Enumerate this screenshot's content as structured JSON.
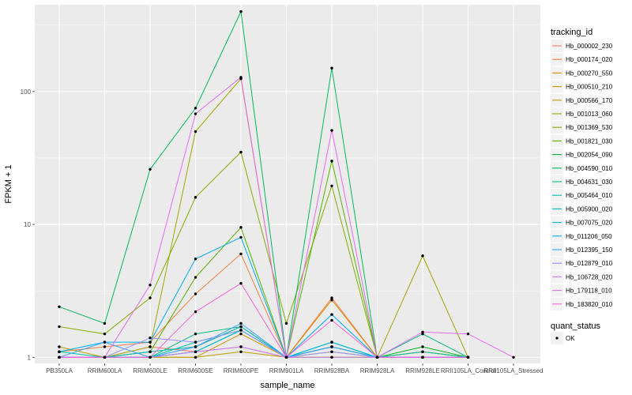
{
  "chart_data": {
    "type": "line",
    "title": "",
    "xlabel": "sample_name",
    "ylabel": "FPKM + 1",
    "y_scale": "log10",
    "ylim": [
      0.9,
      450
    ],
    "y_ticks": [
      1,
      10,
      100
    ],
    "y_tick_labels": [
      "1",
      "10",
      "100"
    ],
    "grid": true,
    "panel_background": "#EBEBEB",
    "legend_position": "right",
    "categories": [
      "PB350LA",
      "RRIM600LA",
      "RRIM600LE",
      "RRIM600SE",
      "RRIM600PE",
      "RRIM901LA",
      "RRIM928BA",
      "RRIM928LA",
      "RRIM928LE",
      "RRII105LA_Control",
      "RRII105LA_Stressed"
    ],
    "series": [
      {
        "name": "Hb_000002_230",
        "color": "#F8766D",
        "values": [
          1.0,
          1.0,
          1.2,
          1.1,
          1.2,
          1.0,
          1.2,
          1.0,
          1.0,
          1.0,
          null
        ]
      },
      {
        "name": "Hb_000174_020",
        "color": "#EE8044",
        "values": [
          1.1,
          1.2,
          1.3,
          3.0,
          6.0,
          1.0,
          2.8,
          1.0,
          1.1,
          1.0,
          null
        ]
      },
      {
        "name": "Hb_000270_550",
        "color": "#E18A00",
        "values": [
          1.0,
          1.0,
          1.1,
          1.2,
          1.7,
          1.0,
          2.7,
          1.0,
          1.0,
          1.0,
          null
        ]
      },
      {
        "name": "Hb_000510_210",
        "color": "#CF9400",
        "values": [
          1.0,
          1.0,
          1.0,
          1.0,
          1.5,
          1.0,
          1.1,
          1.0,
          1.0,
          1.0,
          null
        ]
      },
      {
        "name": "Hb_000566_170",
        "color": "#BB9D00",
        "values": [
          1.2,
          1.0,
          1.0,
          1.0,
          1.1,
          1.0,
          1.0,
          1.0,
          1.0,
          1.0,
          null
        ]
      },
      {
        "name": "Hb_001013_060",
        "color": "#A3A500",
        "values": [
          1.0,
          1.0,
          1.2,
          50.0,
          125.0,
          1.0,
          1.0,
          1.0,
          5.8,
          1.0,
          null
        ]
      },
      {
        "name": "Hb_001369_530",
        "color": "#84AD00",
        "values": [
          1.7,
          1.5,
          2.8,
          16.0,
          35.0,
          1.8,
          19.5,
          1.0,
          1.1,
          1.0,
          null
        ]
      },
      {
        "name": "Hb_001821_030",
        "color": "#56B300",
        "values": [
          1.0,
          1.0,
          1.1,
          4.0,
          9.5,
          1.0,
          30.0,
          1.0,
          1.0,
          1.0,
          null
        ]
      },
      {
        "name": "Hb_002054_090",
        "color": "#00B81F",
        "values": [
          1.0,
          1.0,
          1.0,
          1.1,
          1.6,
          1.0,
          1.2,
          1.0,
          1.2,
          1.0,
          null
        ]
      },
      {
        "name": "Hb_004590_010",
        "color": "#00BC59",
        "values": [
          2.4,
          1.8,
          26.0,
          75.0,
          400.0,
          1.0,
          150.0,
          1.0,
          1.0,
          1.0,
          null
        ]
      },
      {
        "name": "Hb_004631_030",
        "color": "#00BE83",
        "values": [
          1.0,
          1.0,
          1.0,
          1.5,
          1.7,
          1.0,
          1.3,
          1.0,
          1.5,
          1.0,
          null
        ]
      },
      {
        "name": "Hb_005464_010",
        "color": "#00BFA5",
        "values": [
          1.1,
          1.0,
          1.0,
          1.3,
          1.6,
          1.0,
          1.3,
          1.0,
          1.1,
          1.0,
          null
        ]
      },
      {
        "name": "Hb_005900_020",
        "color": "#00BDC4",
        "values": [
          1.0,
          1.0,
          1.1,
          1.2,
          1.7,
          1.0,
          1.2,
          1.0,
          1.0,
          1.0,
          null
        ]
      },
      {
        "name": "Hb_007075_020",
        "color": "#00B8E0",
        "values": [
          1.0,
          1.0,
          1.0,
          1.1,
          1.6,
          1.0,
          1.3,
          1.0,
          1.0,
          1.0,
          null
        ]
      },
      {
        "name": "Hb_011206_050",
        "color": "#00B0F6",
        "values": [
          1.1,
          1.3,
          1.3,
          5.5,
          8.0,
          1.0,
          2.1,
          1.0,
          1.0,
          1.0,
          null
        ]
      },
      {
        "name": "Hb_012395_150",
        "color": "#35A2FF",
        "values": [
          1.0,
          1.3,
          1.0,
          1.2,
          1.8,
          1.0,
          1.2,
          1.0,
          1.0,
          1.0,
          null
        ]
      },
      {
        "name": "Hb_012879_010",
        "color": "#9590FF",
        "values": [
          1.0,
          1.0,
          1.4,
          1.3,
          1.6,
          1.0,
          1.1,
          1.0,
          1.0,
          1.0,
          null
        ]
      },
      {
        "name": "Hb_106728_020",
        "color": "#C77CFF",
        "values": [
          1.0,
          1.0,
          1.0,
          1.1,
          1.2,
          1.0,
          1.0,
          1.0,
          1.0,
          1.0,
          null
        ]
      },
      {
        "name": "Hb_179118_010",
        "color": "#E76BF3",
        "values": [
          1.0,
          1.0,
          3.5,
          68.0,
          128.0,
          1.0,
          51.0,
          1.0,
          1.55,
          1.5,
          1.0
        ]
      },
      {
        "name": "Hb_183820_010",
        "color": "#FA62DB",
        "values": [
          1.0,
          1.0,
          1.0,
          2.2,
          3.6,
          1.0,
          1.9,
          1.0,
          1.0,
          1.0,
          null
        ]
      }
    ],
    "legend": {
      "tracking_title": "tracking_id",
      "quant_title": "quant_status",
      "quant_label": "OK"
    }
  }
}
